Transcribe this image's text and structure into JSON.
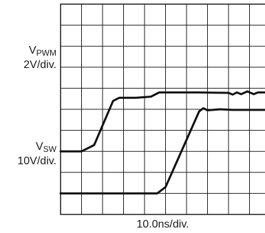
{
  "chart_data": {
    "type": "line",
    "grid": true,
    "divisions": {
      "x": 10,
      "y": 10
    },
    "xlabel": "10.0ns/div.",
    "channels": [
      {
        "name": "V",
        "sub": "PWM",
        "scale": "2V/div.",
        "points": [
          [
            0,
            3.0
          ],
          [
            1.0,
            3.0
          ],
          [
            1.6,
            3.3
          ],
          [
            2.5,
            5.4
          ],
          [
            2.8,
            5.55
          ],
          [
            3.6,
            5.55
          ],
          [
            4.3,
            5.6
          ],
          [
            4.7,
            5.8
          ],
          [
            6.5,
            5.8
          ],
          [
            8.0,
            5.78
          ],
          [
            8.2,
            5.7
          ],
          [
            8.4,
            5.8
          ],
          [
            8.6,
            5.72
          ],
          [
            8.9,
            5.85
          ],
          [
            9.2,
            5.72
          ],
          [
            9.4,
            5.8
          ],
          [
            10,
            5.8
          ]
        ]
      },
      {
        "name": "V",
        "sub": "SW",
        "scale": "10V/div.",
        "points": [
          [
            0,
            1.0
          ],
          [
            4.6,
            1.0
          ],
          [
            5.0,
            1.3
          ],
          [
            6.6,
            4.9
          ],
          [
            6.8,
            5.05
          ],
          [
            7.0,
            4.95
          ],
          [
            7.6,
            5.0
          ],
          [
            8.2,
            4.97
          ],
          [
            10,
            4.97
          ]
        ]
      }
    ]
  }
}
